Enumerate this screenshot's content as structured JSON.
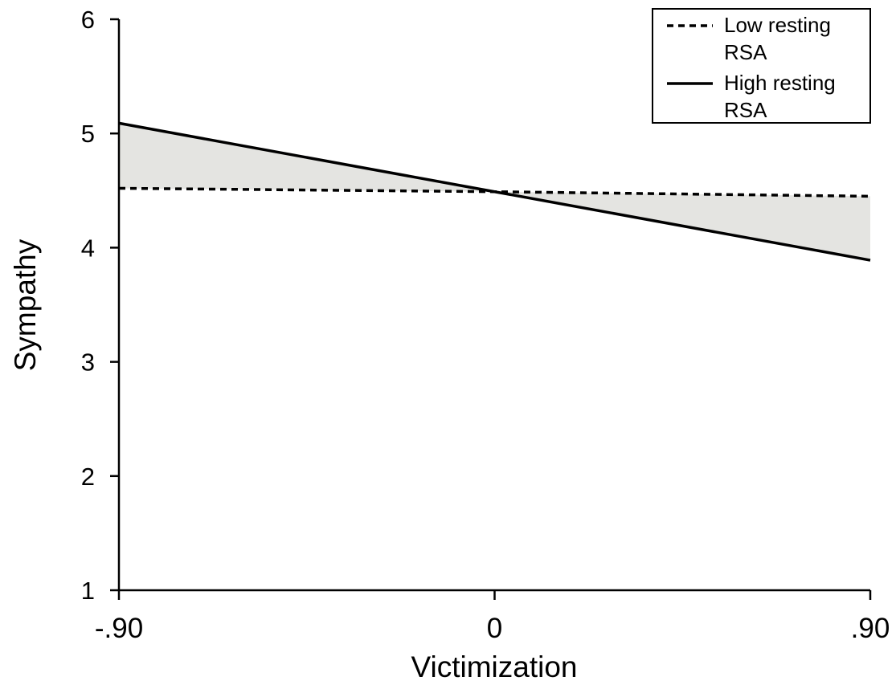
{
  "chart_data": {
    "type": "line",
    "title": "",
    "xlabel": "Victimization",
    "ylabel": "Sympathy",
    "x": [
      -0.9,
      0,
      0.9
    ],
    "x_tick_labels": [
      "-.90",
      "0",
      ".90"
    ],
    "y_ticks": [
      1,
      2,
      3,
      4,
      5,
      6
    ],
    "y_tick_labels": [
      "1",
      "2",
      "3",
      "4",
      "5",
      "6"
    ],
    "xlim": [
      -0.9,
      0.9
    ],
    "ylim": [
      1,
      6
    ],
    "grid": false,
    "legend_position": "top-right",
    "shaded_region": "between series",
    "series": [
      {
        "name": "Low resting RSA",
        "name_lines": [
          "Low resting",
          "RSA"
        ],
        "style": "dashed",
        "values": [
          4.52,
          4.49,
          4.45
        ]
      },
      {
        "name": "High resting RSA",
        "name_lines": [
          "High resting",
          "RSA"
        ],
        "style": "solid",
        "values": [
          5.09,
          4.49,
          3.89
        ]
      }
    ],
    "colors": {
      "line": "#000000",
      "shade": "#e4e4e1"
    }
  }
}
